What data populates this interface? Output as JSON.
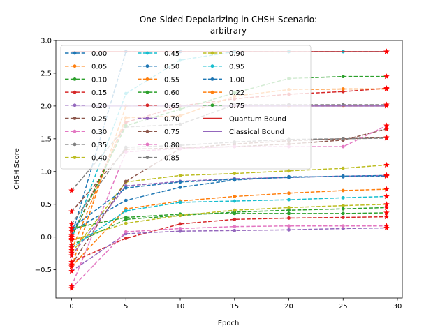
{
  "chart_data": {
    "type": "line",
    "title": "One-Sided Depolarizing in CHSH Scenario:",
    "subtitle": "arbitrary",
    "xlabel": "Epoch",
    "ylabel": "CHSH Score",
    "xlim": [
      -1.45,
      30.45
    ],
    "ylim": [
      -0.93,
      3.0
    ],
    "xticks": [
      0,
      5,
      10,
      15,
      20,
      25,
      30
    ],
    "yticks": [
      -0.5,
      0.0,
      0.5,
      1.0,
      1.5,
      2.0,
      2.5,
      3.0
    ],
    "xtick_labels": [
      "0",
      "5",
      "10",
      "15",
      "20",
      "25",
      "30"
    ],
    "ytick_labels": [
      "−0.5",
      "0.0",
      "0.5",
      "1.0",
      "1.5",
      "2.0",
      "2.5",
      "3.0"
    ],
    "x": [
      0,
      5,
      10,
      15,
      20,
      25,
      29
    ],
    "grid": false,
    "legend_position": "top-left",
    "legend_columns": 3,
    "series": [
      {
        "name": "0.00",
        "color": "#1f77b4",
        "values": [
          0.02,
          2.83,
          2.83,
          2.83,
          2.83,
          2.83,
          2.83
        ]
      },
      {
        "name": "0.05",
        "color": "#ff7f0e",
        "values": [
          -0.45,
          2.0,
          2.0,
          2.0,
          2.0,
          2.0,
          2.0
        ]
      },
      {
        "name": "0.10",
        "color": "#2ca02c",
        "values": [
          -0.12,
          0.27,
          0.33,
          0.38,
          0.41,
          0.43,
          0.45
        ]
      },
      {
        "name": "0.15",
        "color": "#d62728",
        "values": [
          -0.38,
          -0.02,
          0.2,
          0.27,
          0.29,
          0.3,
          0.31
        ]
      },
      {
        "name": "0.20",
        "color": "#9467bd",
        "values": [
          -0.52,
          0.05,
          0.09,
          0.1,
          0.11,
          0.13,
          0.14
        ]
      },
      {
        "name": "0.25",
        "color": "#8c564b",
        "values": [
          0.39,
          1.34,
          1.36,
          1.38,
          1.42,
          1.48,
          1.65
        ]
      },
      {
        "name": "0.30",
        "color": "#e377c2",
        "values": [
          -0.78,
          0.08,
          0.13,
          0.16,
          0.17,
          0.17,
          0.17
        ]
      },
      {
        "name": "0.35",
        "color": "#7f7f7f",
        "values": [
          0.71,
          1.68,
          1.72,
          2.02,
          2.02,
          2.02,
          2.02
        ]
      },
      {
        "name": "0.40",
        "color": "#bcbd22",
        "values": [
          -0.24,
          0.84,
          0.94,
          0.97,
          1.01,
          1.05,
          1.1
        ]
      },
      {
        "name": "0.45",
        "color": "#17becf",
        "values": [
          -0.03,
          2.19,
          2.7,
          2.83,
          2.83,
          2.83,
          2.83
        ]
      },
      {
        "name": "0.50",
        "color": "#1f77b4",
        "values": [
          0.09,
          0.56,
          0.76,
          0.87,
          0.92,
          0.92,
          0.93
        ]
      },
      {
        "name": "0.55",
        "color": "#ff7f0e",
        "values": [
          -0.45,
          0.43,
          0.55,
          0.62,
          0.67,
          0.71,
          0.73
        ]
      },
      {
        "name": "0.60",
        "color": "#2ca02c",
        "values": [
          0.13,
          0.3,
          0.35,
          0.36,
          0.36,
          0.36,
          0.37
        ]
      },
      {
        "name": "0.65",
        "color": "#d62728",
        "values": [
          0.0,
          1.75,
          2.0,
          2.11,
          2.18,
          2.22,
          2.27
        ]
      },
      {
        "name": "0.70",
        "color": "#9467bd",
        "values": [
          -0.28,
          0.78,
          0.85,
          0.89,
          0.91,
          0.93,
          0.94
        ]
      },
      {
        "name": "0.75",
        "color": "#8c564b",
        "values": [
          -0.42,
          0.85,
          1.35,
          1.42,
          1.47,
          1.5,
          1.52
        ]
      },
      {
        "name": "0.80",
        "color": "#e377c2",
        "values": [
          -0.75,
          1.3,
          1.35,
          1.38,
          1.38,
          1.38,
          1.7
        ]
      },
      {
        "name": "0.85",
        "color": "#7f7f7f",
        "values": [
          0.2,
          1.37,
          1.4,
          1.45,
          1.49,
          1.5,
          1.51
        ]
      },
      {
        "name": "0.90",
        "color": "#bcbd22",
        "values": [
          -0.05,
          0.21,
          0.33,
          0.41,
          0.45,
          0.48,
          0.5
        ]
      },
      {
        "name": "0.95",
        "color": "#17becf",
        "values": [
          -0.16,
          0.4,
          0.53,
          0.55,
          0.57,
          0.6,
          0.62
        ]
      },
      {
        "name": "1.00",
        "color": "#1f77b4",
        "values": [
          0.14,
          0.75,
          0.84,
          0.88,
          0.91,
          0.93,
          0.94
        ]
      },
      {
        "name": "0.22",
        "color": "#ff7f0e",
        "values": [
          -0.2,
          1.82,
          1.85,
          2.15,
          2.25,
          2.26,
          2.26
        ]
      },
      {
        "name": "0.75",
        "color": "#2ca02c",
        "values": [
          0.0,
          1.7,
          1.95,
          2.2,
          2.42,
          2.45,
          2.45
        ]
      }
    ],
    "bounds": [
      {
        "name": "Quantum Bound",
        "color": "#d62728",
        "value": 2.83
      },
      {
        "name": "Classical Bound",
        "color": "#9467bd",
        "value": 2.0
      }
    ],
    "final_marker": "star"
  }
}
